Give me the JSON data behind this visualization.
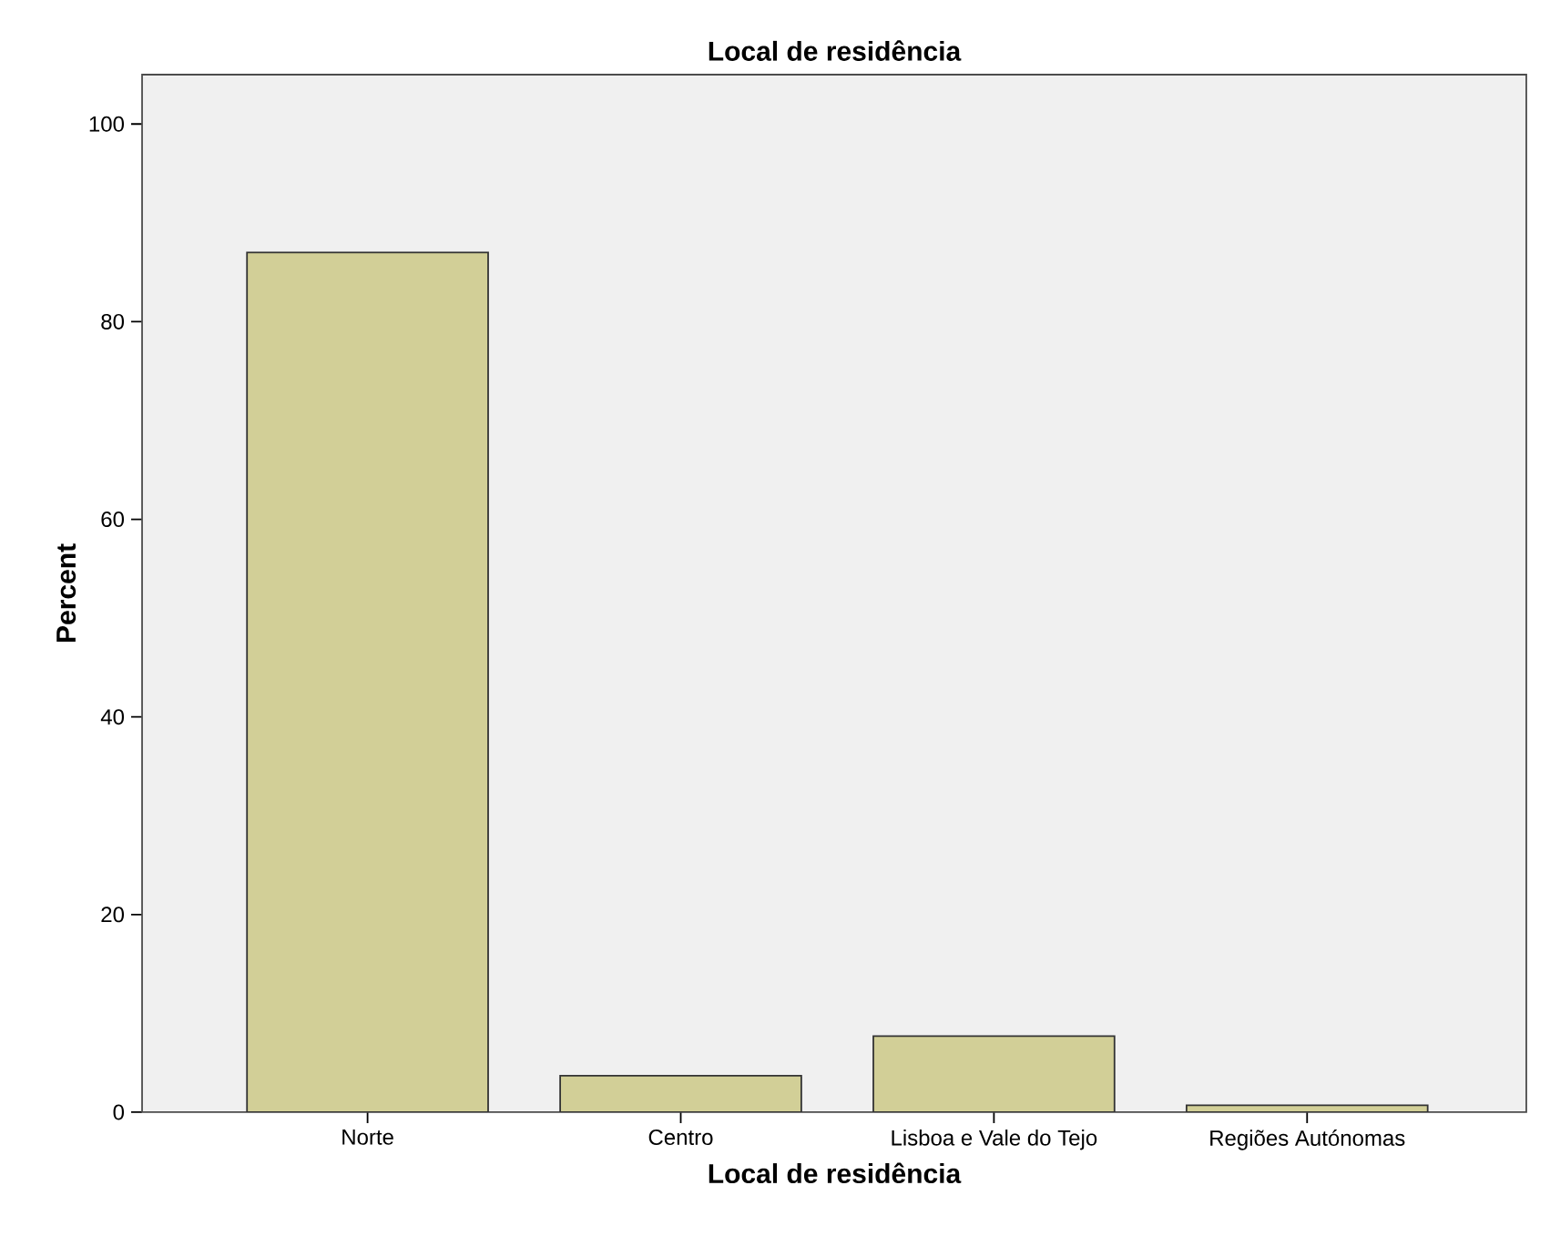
{
  "chart_data": {
    "type": "bar",
    "title": "Local de residência",
    "xlabel": "Local de residência",
    "ylabel": "Percent",
    "categories": [
      "Norte",
      "Centro",
      "Lisboa e Vale do Tejo",
      "Regiões Autónomas"
    ],
    "values": [
      87.0,
      3.7,
      7.7,
      0.7
    ],
    "color": "#d2cf97",
    "ylim": [
      0,
      105
    ],
    "yticks": [
      0,
      20,
      40,
      60,
      80,
      100
    ]
  }
}
